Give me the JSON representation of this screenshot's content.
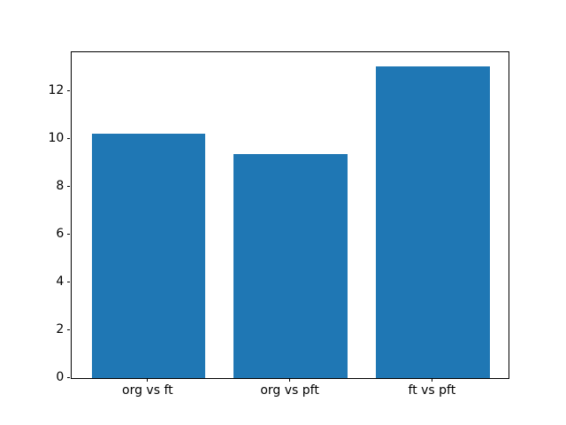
{
  "chart_data": {
    "type": "bar",
    "title": "",
    "xlabel": "",
    "ylabel": "",
    "categories": [
      "org vs ft",
      "org vs pft",
      "ft vs pft"
    ],
    "values": [
      10.2,
      9.35,
      13.0
    ],
    "yticks": [
      0,
      2,
      4,
      6,
      8,
      10,
      12
    ],
    "ylim": [
      0,
      13.65
    ],
    "bar_color": "#1f77b4",
    "bar_width_fraction": 0.8,
    "grid": false,
    "legend_position": "none",
    "background_color": "#ffffff",
    "spine_color": "#000000",
    "tick_label_color": "#000000"
  }
}
